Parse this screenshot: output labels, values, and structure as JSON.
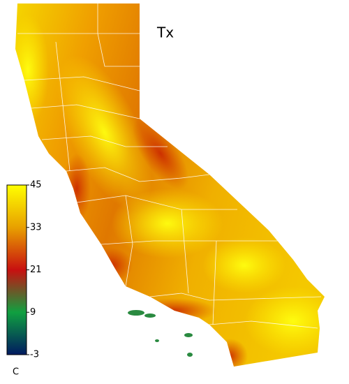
{
  "title": "Tx",
  "colorbar": {
    "unit": "C",
    "ticks": [
      45,
      33,
      21,
      9,
      -3
    ],
    "colors": [
      "#ffff00",
      "#e8a000",
      "#c81010",
      "#10a040",
      "#001a60"
    ]
  }
}
